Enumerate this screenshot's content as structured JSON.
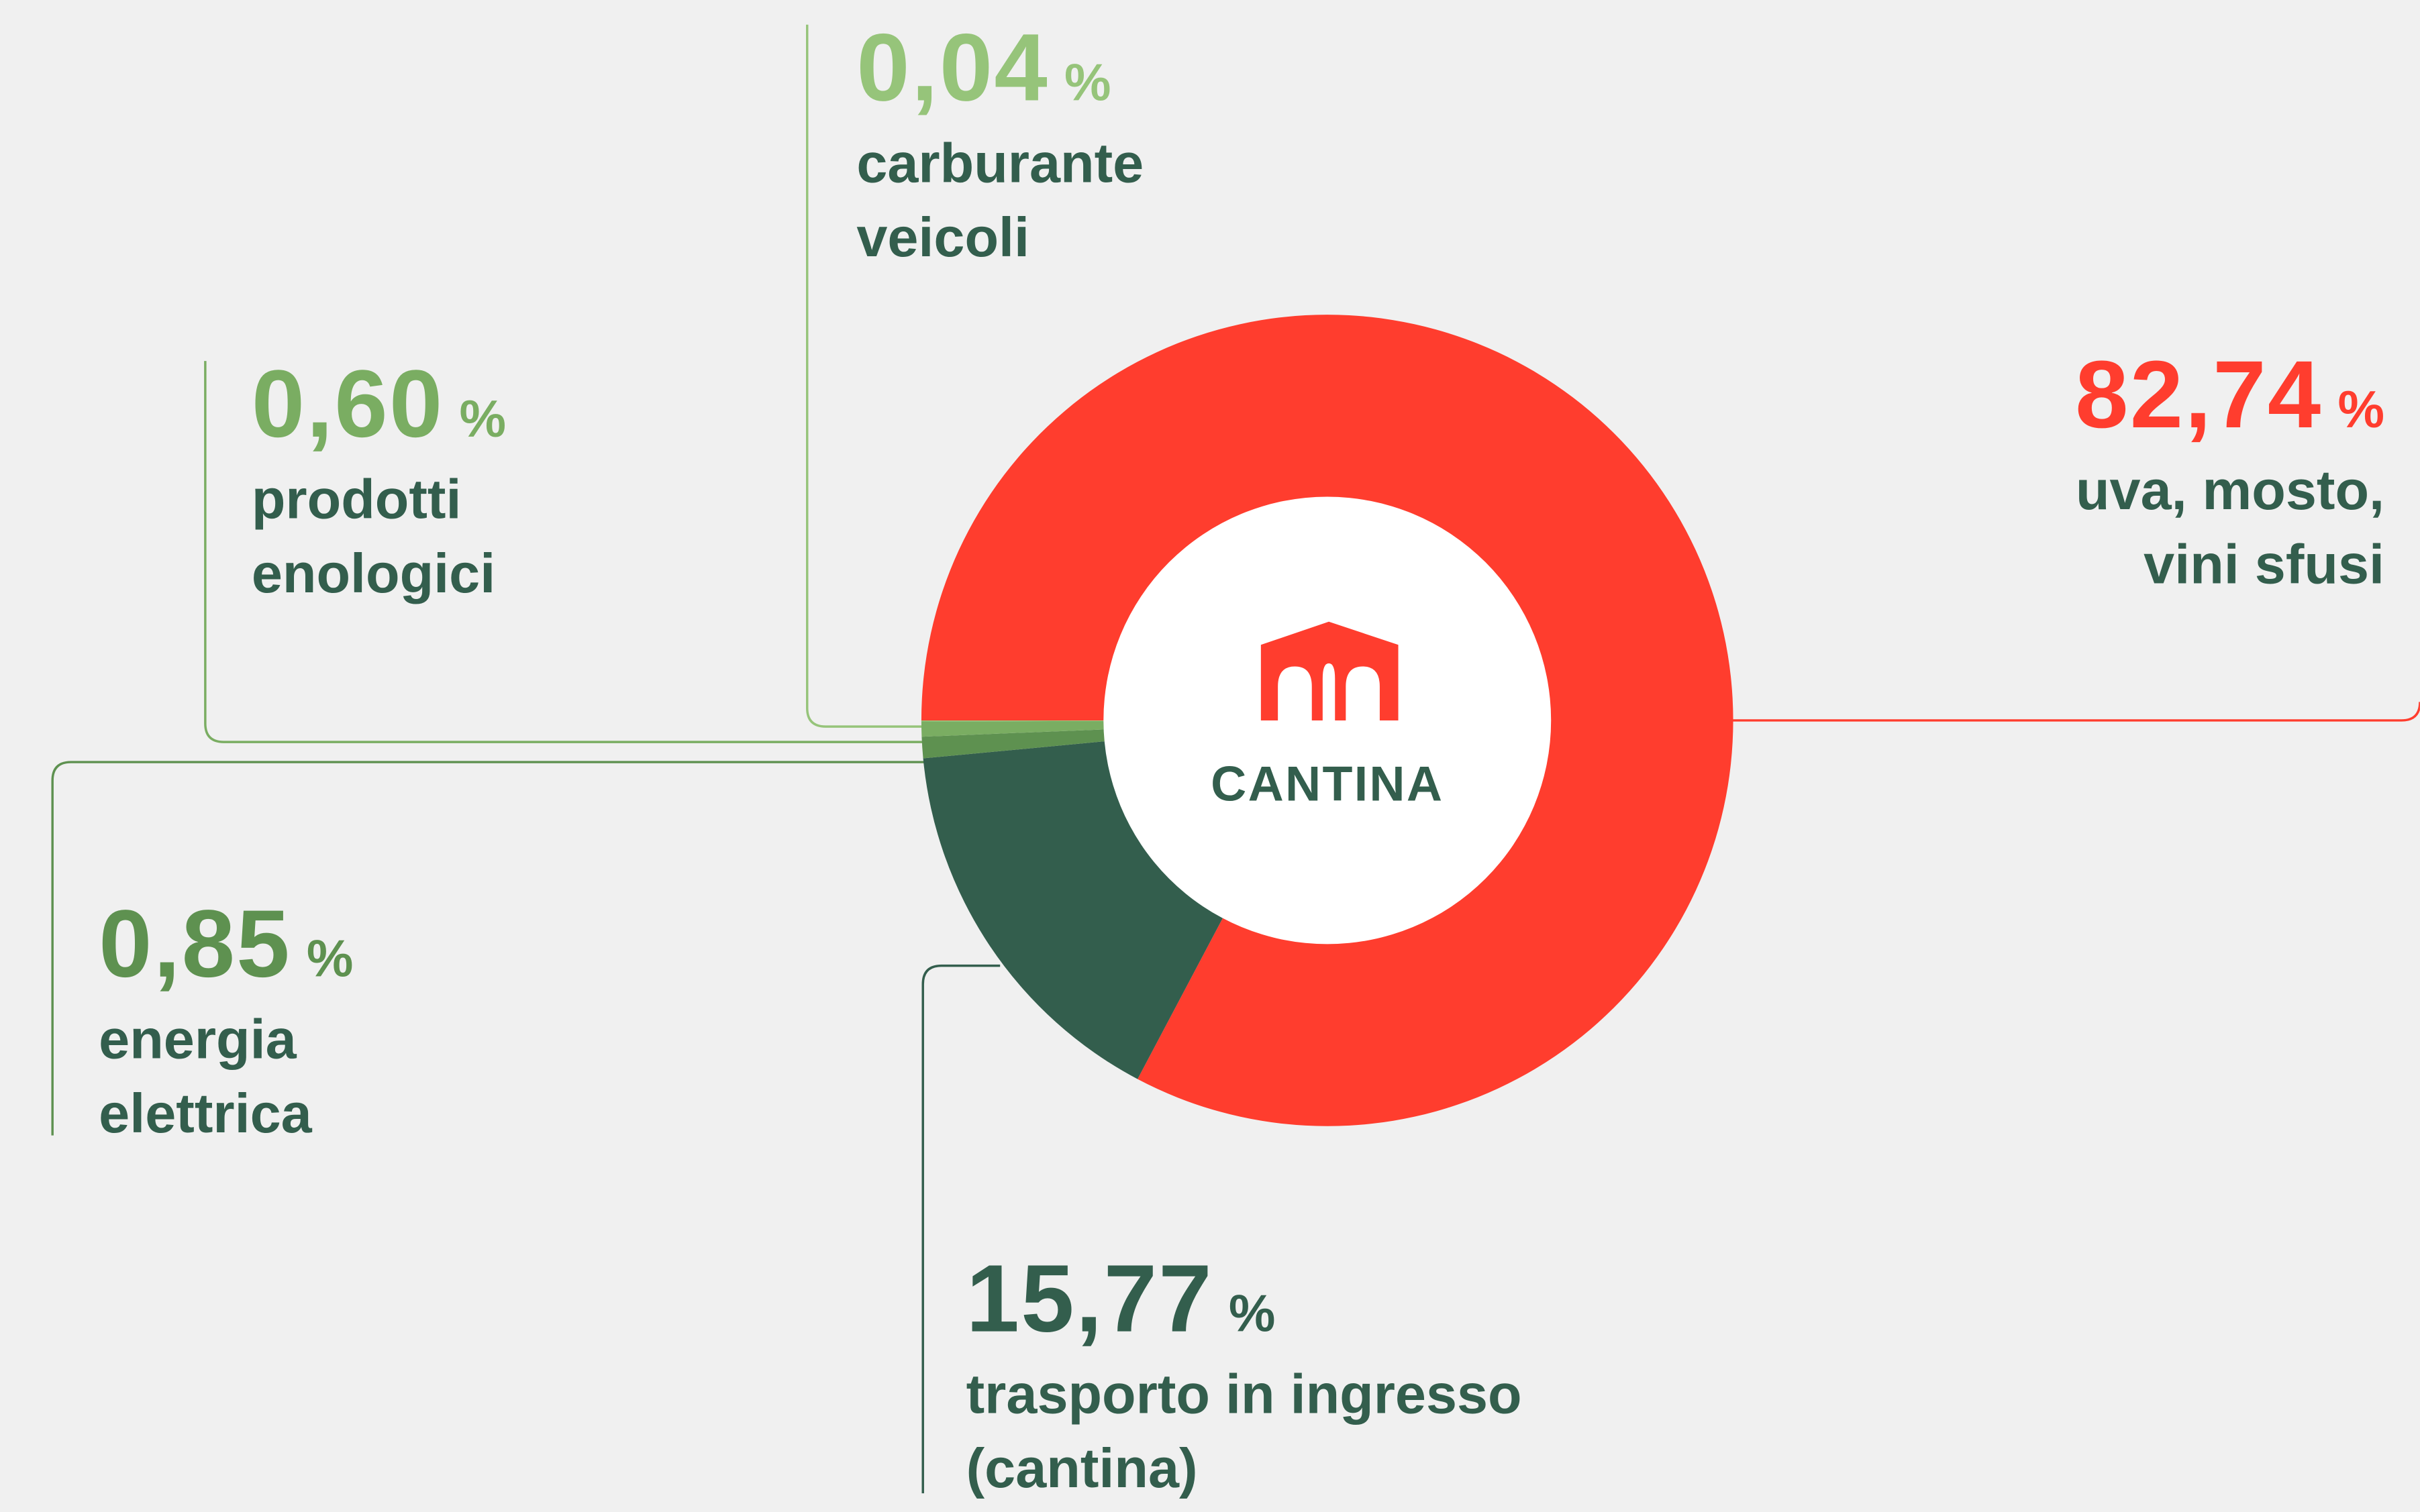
{
  "chart_data": {
    "type": "pie",
    "center_label": "CANTINA",
    "categories": [
      "uva, mosto,\nvini sfusi",
      "trasporto in ingresso\n(cantina)",
      "energia\nelettrica",
      "prodotti\nenologici",
      "carburante\nveicoli"
    ],
    "values": [
      82.74,
      15.77,
      0.85,
      0.6,
      0.04
    ],
    "value_labels": [
      "82,74",
      "15,77",
      "0,85",
      "0,60",
      "0,04"
    ],
    "value_unit": "%",
    "colors": [
      "#ff3d2e",
      "#335e4d",
      "#5e9150",
      "#7aad62",
      "#96c47a"
    ]
  }
}
